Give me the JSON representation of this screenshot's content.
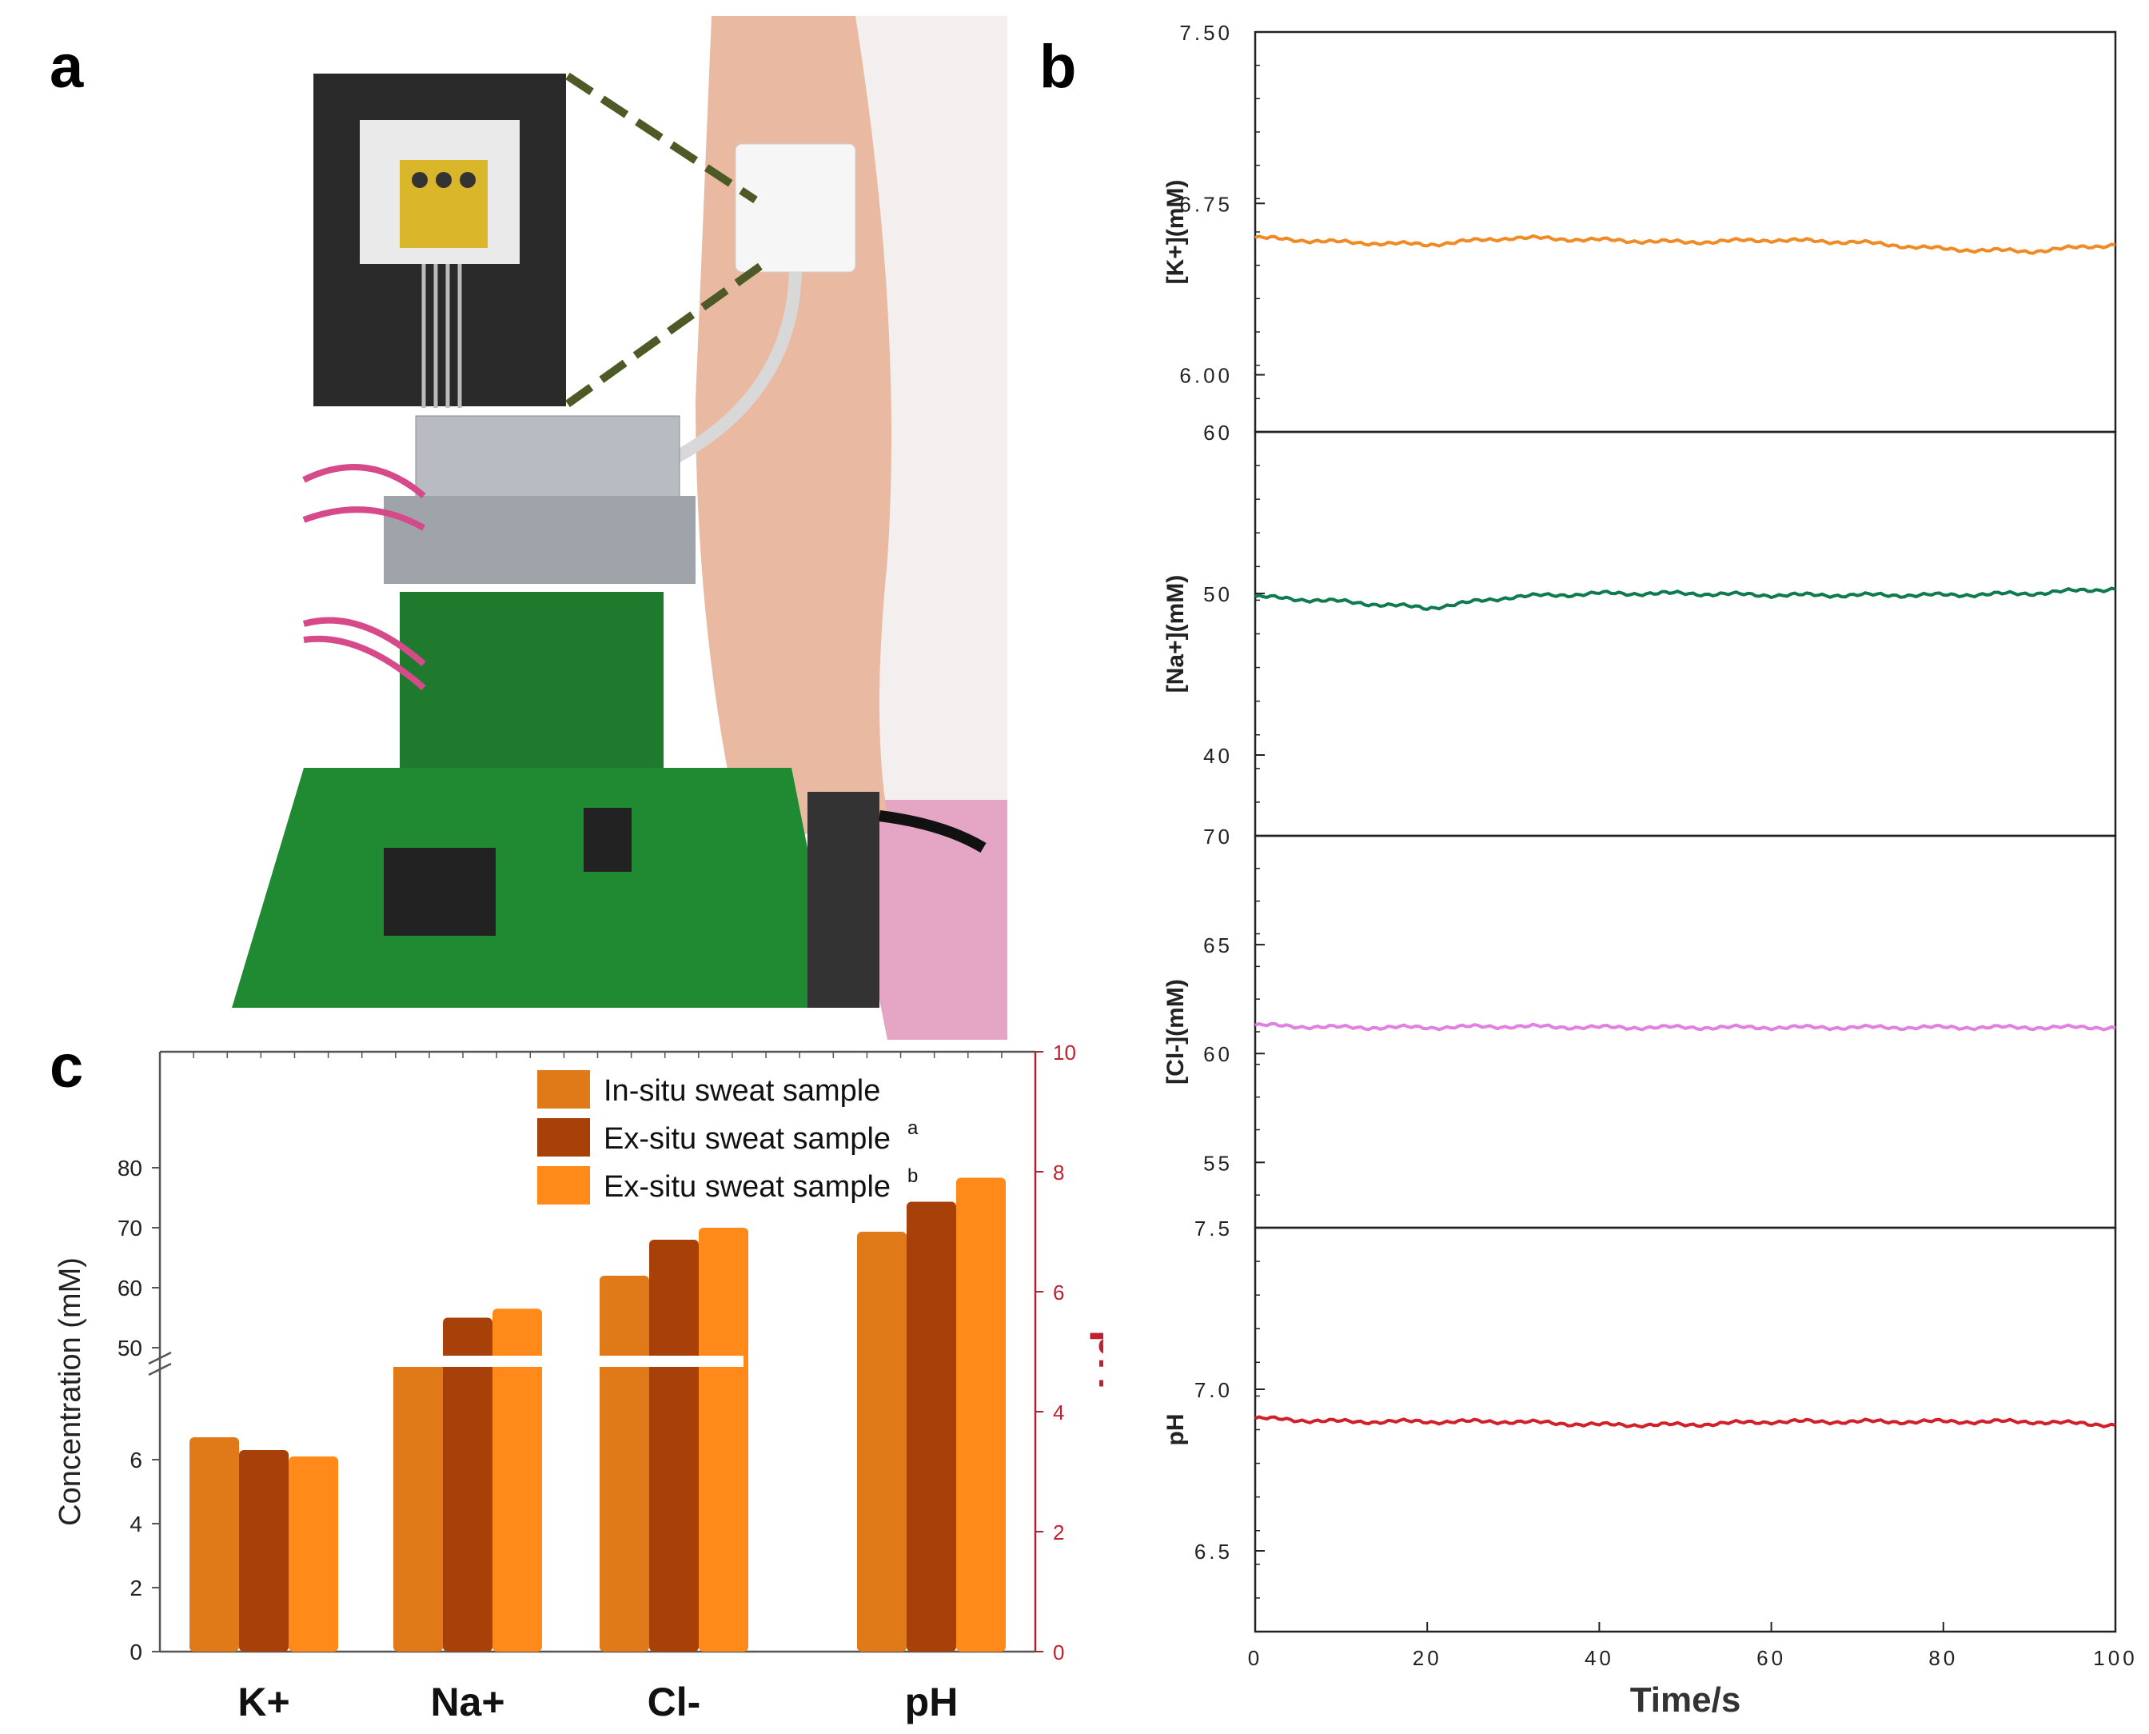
{
  "panels": {
    "a": "a",
    "b": "b",
    "c": "c"
  },
  "photo": {
    "description_icon": "wearable-sensor-photo-icon",
    "colors": {
      "board": "#1f7a2e",
      "patch": "#d9b62a",
      "arm": "#e8b9a0"
    }
  },
  "chart_data": [
    {
      "id": "b",
      "type": "line",
      "x_label": "Time/s",
      "x_range": [
        0,
        100
      ],
      "x_ticks": [
        "0",
        "20",
        "40",
        "60",
        "80",
        "100"
      ],
      "subplots": [
        {
          "name": "K",
          "ylabel": "[K+](mM)",
          "ylim": [
            5.75,
            7.5
          ],
          "ticks": [
            "7.50",
            "6.75",
            "6.00"
          ],
          "tick_values": [
            7.5,
            6.75,
            6.0
          ],
          "color": "#f08a24",
          "x": [
            0,
            10,
            20,
            30,
            40,
            50,
            60,
            70,
            80,
            90,
            100
          ],
          "y": [
            6.6,
            6.58,
            6.57,
            6.6,
            6.59,
            6.58,
            6.59,
            6.58,
            6.55,
            6.54,
            6.57
          ]
        },
        {
          "name": "Na",
          "ylabel": "[Na+](mM)",
          "ylim": [
            35,
            60
          ],
          "ticks": [
            "60",
            "50",
            "40"
          ],
          "tick_values": [
            60,
            50,
            40
          ],
          "color": "#0e7a4e",
          "x": [
            0,
            10,
            20,
            30,
            40,
            50,
            60,
            70,
            80,
            90,
            100
          ],
          "y": [
            49.8,
            49.5,
            49.1,
            49.8,
            50.0,
            50.0,
            49.9,
            49.9,
            49.9,
            50.0,
            50.3
          ]
        },
        {
          "name": "Cl",
          "ylabel": "[Cl-](mM)",
          "ylim": [
            52,
            70
          ],
          "ticks": [
            "70",
            "65",
            "60",
            "55"
          ],
          "tick_values": [
            70,
            65,
            60,
            55
          ],
          "color": "#e080e0",
          "x": [
            0,
            10,
            20,
            30,
            40,
            50,
            60,
            70,
            80,
            90,
            100
          ],
          "y": [
            61.3,
            61.2,
            61.2,
            61.25,
            61.2,
            61.2,
            61.2,
            61.2,
            61.2,
            61.2,
            61.2
          ]
        },
        {
          "name": "pH",
          "ylabel": "pH",
          "ylim": [
            6.25,
            7.5
          ],
          "ticks": [
            "7.5",
            "7.0",
            "6.5"
          ],
          "tick_values": [
            7.5,
            7.0,
            6.5
          ],
          "color": "#d0202a",
          "x": [
            0,
            10,
            20,
            30,
            40,
            50,
            60,
            70,
            80,
            90,
            100
          ],
          "y": [
            6.91,
            6.9,
            6.9,
            6.9,
            6.89,
            6.89,
            6.9,
            6.9,
            6.9,
            6.9,
            6.89
          ]
        }
      ]
    },
    {
      "id": "c",
      "type": "bar",
      "categories": [
        "K+",
        "Na+",
        "Cl-",
        "pH"
      ],
      "ylabel": "Concentration (mM)",
      "ylabel_right": "pH",
      "left_ticks_upper": [
        "80",
        "70",
        "60",
        "50"
      ],
      "left_ticks_lower": [
        "6",
        "4",
        "2",
        "0"
      ],
      "right_ticks": [
        "10",
        "8",
        "6",
        "4",
        "2",
        "0"
      ],
      "series": [
        {
          "name": "In-situ sweat sample",
          "color": "#e07a18",
          "values": [
            6.7,
            48,
            62,
            7.0
          ]
        },
        {
          "name": "Ex-situ sweat sample",
          "sup": "a",
          "color": "#a8400a",
          "values": [
            6.3,
            55,
            68,
            7.5
          ]
        },
        {
          "name": "Ex-situ sweat sample",
          "sup": "b",
          "color": "#ff8a1a",
          "values": [
            6.1,
            56.5,
            70,
            7.9
          ]
        }
      ]
    }
  ]
}
